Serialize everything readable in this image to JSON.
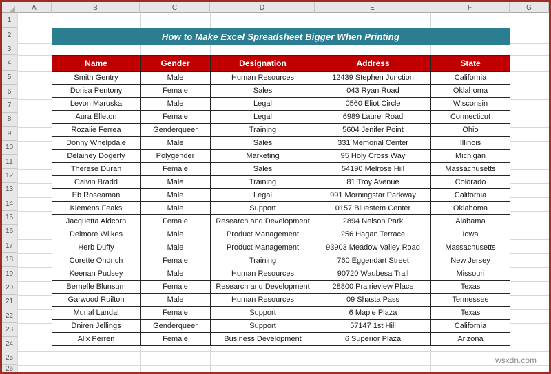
{
  "banner": {
    "title": "How to Make Excel Spreadsheet Bigger When Printing",
    "bg_color": "#2B7D90",
    "text_color": "#FFFFFF"
  },
  "sheet": {
    "column_letters": [
      "A",
      "B",
      "C",
      "D",
      "E",
      "F",
      "G"
    ],
    "row_numbers": [
      "1",
      "2",
      "3",
      "4",
      "5",
      "6",
      "7",
      "8",
      "9",
      "10",
      "11",
      "12",
      "13",
      "14",
      "15",
      "16",
      "17",
      "18",
      "19",
      "20",
      "21",
      "22",
      "23",
      "24",
      "25",
      "26"
    ],
    "header_bg": "#E7E7E7",
    "gridline_color": "#D8D8D8",
    "frame_border_color": "#9E2D28"
  },
  "table": {
    "header_bg": "#C00000",
    "header_text_color": "#FFFFFF",
    "columns": [
      "Name",
      "Gender",
      "Designation",
      "Address",
      "State"
    ],
    "rows": [
      [
        "Smith Gentry",
        "Male",
        "Human Resources",
        "12439 Stephen Junction",
        "California"
      ],
      [
        "Dorisa Pentony",
        "Female",
        "Sales",
        "043 Ryan Road",
        "Oklahoma"
      ],
      [
        "Levon Maruska",
        "Male",
        "Legal",
        "0560 Eliot Circle",
        "Wisconsin"
      ],
      [
        "Aura Elleton",
        "Female",
        "Legal",
        "6989 Laurel Road",
        "Connecticut"
      ],
      [
        "Rozalie Ferrea",
        "Genderqueer",
        "Training",
        "5604 Jenifer Point",
        "Ohio"
      ],
      [
        "Donny Whelpdale",
        "Male",
        "Sales",
        "331 Memorial Center",
        "Illinois"
      ],
      [
        "Delainey Dogerty",
        "Polygender",
        "Marketing",
        "95 Holy Cross Way",
        "Michigan"
      ],
      [
        "Therese Duran",
        "Female",
        "Sales",
        "54190 Melrose Hill",
        "Massachusetts"
      ],
      [
        "Calvin Bradd",
        "Male",
        "Training",
        "81 Troy Avenue",
        "Colorado"
      ],
      [
        "Eb Roseaman",
        "Male",
        "Legal",
        "991 Morningstar Parkway",
        "California"
      ],
      [
        "Klemens Feaks",
        "Male",
        "Support",
        "0157 Bluestem Center",
        "Oklahoma"
      ],
      [
        "Jacquetta Aldcorn",
        "Female",
        "Research and Development",
        "2894 Nelson Park",
        "Alabama"
      ],
      [
        "Delmore Wilkes",
        "Male",
        "Product Management",
        "256 Hagan Terrace",
        "Iowa"
      ],
      [
        "Herb Duffy",
        "Male",
        "Product Management",
        "93903 Meadow Valley Road",
        "Massachusetts"
      ],
      [
        "Corette Ondrich",
        "Female",
        "Training",
        "760 Eggendart Street",
        "New Jersey"
      ],
      [
        "Keenan Pudsey",
        "Male",
        "Human Resources",
        "90720 Waubesa Trail",
        "Missouri"
      ],
      [
        "Bernelle Blunsum",
        "Female",
        "Research and Development",
        "28800 Prairieview Place",
        "Texas"
      ],
      [
        "Garwood Ruilton",
        "Male",
        "Human Resources",
        "09 Shasta Pass",
        "Tennessee"
      ],
      [
        "Murial Landal",
        "Female",
        "Support",
        "6 Maple Plaza",
        "Texas"
      ],
      [
        "Dniren Jellings",
        "Genderqueer",
        "Support",
        "57147 1st Hill",
        "California"
      ],
      [
        "Allx Perren",
        "Female",
        "Business Development",
        "6 Superior Plaza",
        "Arizona"
      ]
    ]
  },
  "watermark": {
    "text": "wsxdn.com"
  }
}
